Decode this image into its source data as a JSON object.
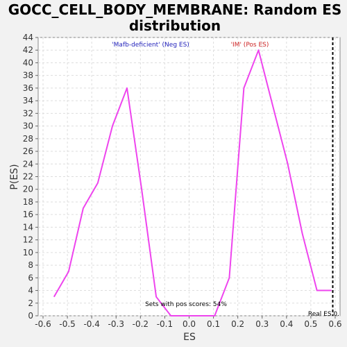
{
  "chart_data": {
    "type": "line",
    "title_line1": "GOCC_CELL_BODY_MEMBRANE: Random ES",
    "title_line2": "distribution",
    "xlabel": "ES",
    "ylabel": "P(ES)",
    "xlim": [
      -0.62,
      0.62
    ],
    "ylim": [
      0,
      44
    ],
    "xticks": [
      -0.6,
      -0.5,
      -0.4,
      -0.3,
      -0.2,
      -0.1,
      0.0,
      0.1,
      0.2,
      0.3,
      0.4,
      0.5,
      0.6
    ],
    "xtick_labels": [
      "-0.6",
      "-0.5",
      "-0.4",
      "-0.3",
      "-0.2",
      "-0.1",
      "0.0",
      "0.1",
      "0.2",
      "0.3",
      "0.4",
      "0.5",
      "0.6"
    ],
    "yticks": [
      0,
      2,
      4,
      6,
      8,
      10,
      12,
      14,
      16,
      18,
      20,
      22,
      24,
      26,
      28,
      30,
      32,
      34,
      36,
      38,
      40,
      42,
      44
    ],
    "grid": true,
    "series": [
      {
        "color": "#ee44ee",
        "x": [
          -0.555,
          -0.495,
          -0.435,
          -0.375,
          -0.315,
          -0.255,
          -0.195,
          -0.135,
          -0.075,
          0.105,
          0.165,
          0.225,
          0.285,
          0.345,
          0.405,
          0.465,
          0.525,
          0.585
        ],
        "y": [
          3,
          7,
          17,
          21,
          30,
          36,
          20,
          3,
          0,
          0,
          6,
          36,
          42,
          33,
          24,
          13,
          4,
          4
        ]
      }
    ],
    "real_es": 0.59,
    "annotations": {
      "neg_label": "'Mafb-deficient' (Neg ES)",
      "neg_color": "#2222bb",
      "pos_label": "'IM' (Pos ES)",
      "pos_color": "#cc2222",
      "sets_pos": "Sets with pos scores: 54%",
      "real_es_label": "Real ES 0."
    }
  }
}
